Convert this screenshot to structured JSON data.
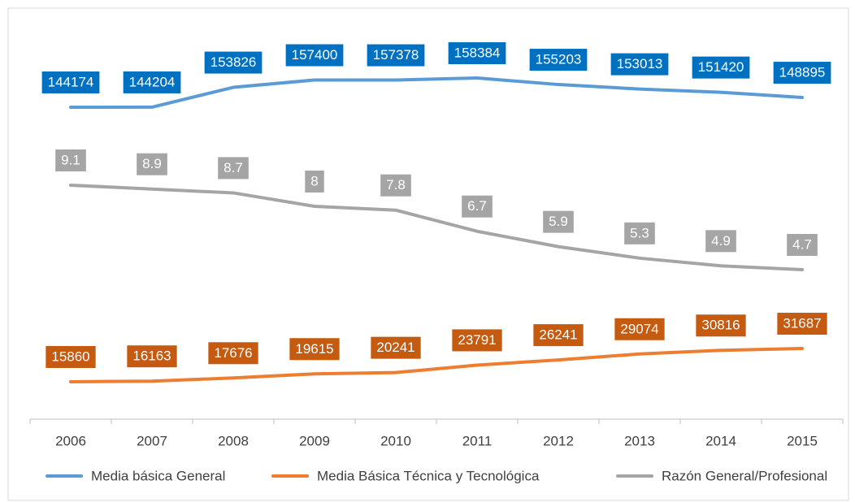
{
  "chart_data": {
    "type": "line",
    "categories": [
      "2006",
      "2007",
      "2008",
      "2009",
      "2010",
      "2011",
      "2012",
      "2013",
      "2014",
      "2015"
    ],
    "series": [
      {
        "name": "Media básica General",
        "color": "#5b9bd5",
        "label_color": "#0070c0",
        "values": [
          144174,
          144204,
          153826,
          157400,
          157378,
          158384,
          155203,
          153013,
          151420,
          148895
        ]
      },
      {
        "name": "Media Básica Técnica y Tecnológica",
        "color": "#ed7d31",
        "label_color": "#c55a11",
        "values": [
          15860,
          16163,
          17676,
          19615,
          20241,
          23791,
          26241,
          29074,
          30816,
          31687
        ]
      },
      {
        "name": "Razón General/Profesional",
        "color": "#a5a5a5",
        "label_color": "#a5a5a5",
        "values": [
          9.1,
          8.9,
          8.7,
          8,
          7.8,
          6.7,
          5.9,
          5.3,
          4.9,
          4.7
        ]
      }
    ],
    "legend": "bottom"
  }
}
